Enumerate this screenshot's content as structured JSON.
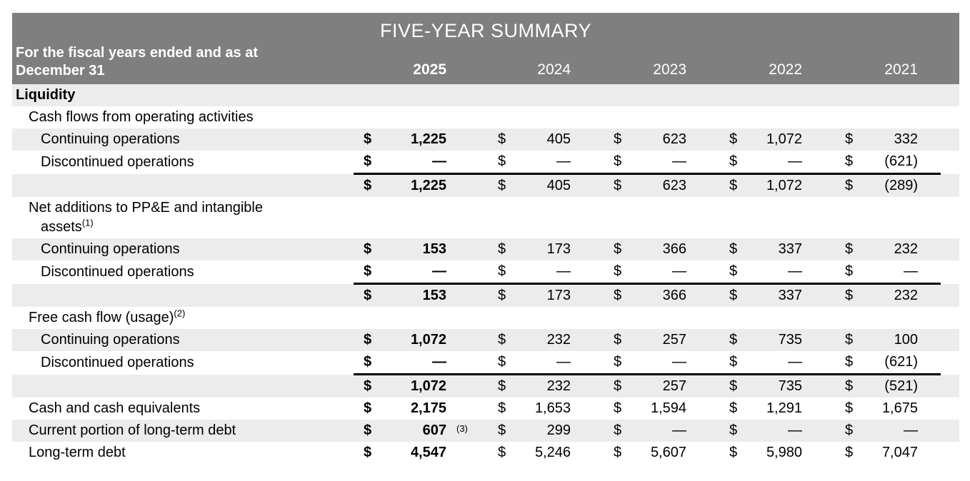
{
  "table": {
    "title": "FIVE-YEAR SUMMARY",
    "subheader_line1": "For the fiscal years ended and as at",
    "subheader_line2": "December 31",
    "years": [
      "2025",
      "2024",
      "2023",
      "2022",
      "2021"
    ],
    "currency": "$",
    "section": "Liquidity",
    "rows": [
      {
        "type": "section",
        "indent": 0,
        "label": "Liquidity"
      },
      {
        "type": "label",
        "indent": 1,
        "label": "Cash flows from operating activities"
      },
      {
        "type": "data",
        "indent": 2,
        "label": "Continuing operations",
        "values": [
          "1,225",
          "405",
          "623",
          "1,072",
          "332"
        ]
      },
      {
        "type": "data",
        "indent": 2,
        "label": "Discontinued operations",
        "values": [
          "—",
          "—",
          "—",
          "—",
          "(621)"
        ],
        "underline": true
      },
      {
        "type": "data",
        "indent": 2,
        "label": "",
        "values": [
          "1,225",
          "405",
          "623",
          "1,072",
          "(289)"
        ]
      },
      {
        "type": "label",
        "indent": 1,
        "label_lines": [
          "Net additions to PP&E and intangible",
          "assets"
        ],
        "sup": "(1)"
      },
      {
        "type": "data",
        "indent": 2,
        "label": "Continuing operations",
        "values": [
          "153",
          "173",
          "366",
          "337",
          "232"
        ]
      },
      {
        "type": "data",
        "indent": 2,
        "label": "Discontinued operations",
        "values": [
          "—",
          "—",
          "—",
          "—",
          "—"
        ],
        "underline": true
      },
      {
        "type": "data",
        "indent": 2,
        "label": "",
        "values": [
          "153",
          "173",
          "366",
          "337",
          "232"
        ]
      },
      {
        "type": "label",
        "indent": 1,
        "label": "Free cash flow (usage)",
        "sup": "(2)"
      },
      {
        "type": "data",
        "indent": 2,
        "label": "Continuing operations",
        "values": [
          "1,072",
          "232",
          "257",
          "735",
          "100"
        ]
      },
      {
        "type": "data",
        "indent": 2,
        "label": "Discontinued operations",
        "values": [
          "—",
          "—",
          "—",
          "—",
          "(621)"
        ],
        "underline": true
      },
      {
        "type": "data",
        "indent": 2,
        "label": "",
        "values": [
          "1,072",
          "232",
          "257",
          "735",
          "(521)"
        ]
      },
      {
        "type": "data",
        "indent": 1,
        "label": "Cash and cash equivalents",
        "values": [
          "2,175",
          "1,653",
          "1,594",
          "1,291",
          "1,675"
        ]
      },
      {
        "type": "data",
        "indent": 1,
        "label": "Current portion of long-term debt",
        "values": [
          "607",
          "299",
          "—",
          "—",
          "—"
        ],
        "footnote": "(3)"
      },
      {
        "type": "data",
        "indent": 1,
        "label": "Long-term debt",
        "values": [
          "4,547",
          "5,246",
          "5,607",
          "5,980",
          "7,047"
        ]
      }
    ]
  },
  "colors": {
    "header_bg": "#7f7f7f",
    "header_text": "#ffffff",
    "row_shaded": "#ececec",
    "text": "#000000",
    "sum_line": "#000000"
  }
}
